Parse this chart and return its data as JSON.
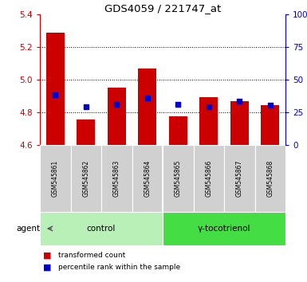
{
  "title": "GDS4059 / 221747_at",
  "samples": [
    "GSM545861",
    "GSM545862",
    "GSM545863",
    "GSM545864",
    "GSM545865",
    "GSM545866",
    "GSM545867",
    "GSM545868"
  ],
  "red_values": [
    5.285,
    4.755,
    4.95,
    5.065,
    4.775,
    4.89,
    4.865,
    4.84
  ],
  "blue_values": [
    4.905,
    4.83,
    4.845,
    4.885,
    4.845,
    4.83,
    4.865,
    4.84
  ],
  "bar_base": 4.6,
  "ylim_left": [
    4.6,
    5.4
  ],
  "ylim_right": [
    0,
    100
  ],
  "yticks_left": [
    4.6,
    4.8,
    5.0,
    5.2,
    5.4
  ],
  "yticks_right": [
    0,
    25,
    50,
    75,
    100
  ],
  "ytick_labels_right": [
    "0",
    "25",
    "50",
    "75",
    "100%"
  ],
  "groups": [
    {
      "label": "control",
      "indices": [
        0,
        1,
        2,
        3
      ],
      "color": "#b8f0b8"
    },
    {
      "label": "γ-tocotrienol",
      "indices": [
        4,
        5,
        6,
        7
      ],
      "color": "#44dd44"
    }
  ],
  "red_bar_color": "#cc0000",
  "blue_marker_color": "#0000cc",
  "tick_color_left": "#cc0000",
  "tick_color_right": "#0000cc",
  "sample_bg": "#d0d0d0",
  "agent_label": "agent",
  "legend_items": [
    {
      "color": "#cc0000",
      "label": "transformed count"
    },
    {
      "color": "#0000cc",
      "label": "percentile rank within the sample"
    }
  ],
  "dotted_lines": [
    4.8,
    5.0,
    5.2
  ],
  "bar_width": 0.6
}
